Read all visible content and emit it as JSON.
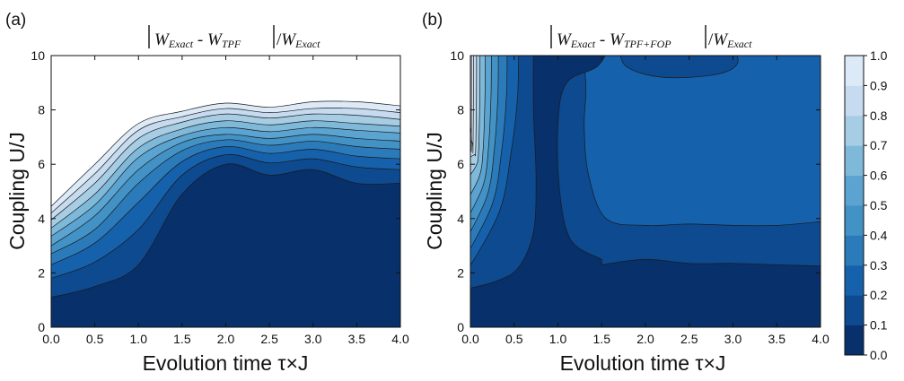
{
  "chart_data": [
    {
      "type": "heatmap",
      "panel_label": "(a)",
      "title_parts": {
        "w_exact": "W",
        "sub_exact": "Exact",
        "minus": " - ",
        "w_approx": "W",
        "sub_approx": "TPF",
        "slash": " /",
        "w_den": "W",
        "sub_den": "Exact"
      },
      "xlabel": "Evolution time τ×J",
      "ylabel": "Coupling U/J",
      "xlim": [
        0,
        4
      ],
      "ylim": [
        0,
        10
      ],
      "xticks": [
        "0.0",
        "0.5",
        "1.0",
        "1.5",
        "2.0",
        "2.5",
        "3.0",
        "3.5",
        "4.0"
      ],
      "yticks": [
        "0",
        "2",
        "4",
        "6",
        "8",
        "10"
      ],
      "contour_levels": [
        0.0,
        0.1,
        0.2,
        0.3,
        0.4,
        0.5,
        0.6,
        0.7,
        0.8,
        0.9,
        1.0
      ],
      "contour_x": [
        0,
        0.5,
        1.0,
        1.5,
        2.0,
        2.5,
        3.0,
        3.5,
        4.0
      ],
      "contours": [
        {
          "level": 0.1,
          "y": [
            1.1,
            1.5,
            2.3,
            4.9,
            6.0,
            5.6,
            5.8,
            5.3,
            5.3
          ]
        },
        {
          "level": 0.2,
          "y": [
            1.8,
            2.4,
            3.6,
            5.6,
            6.35,
            6.05,
            6.2,
            5.9,
            5.8
          ]
        },
        {
          "level": 0.3,
          "y": [
            2.3,
            3.1,
            4.6,
            6.1,
            6.65,
            6.4,
            6.55,
            6.3,
            6.2
          ]
        },
        {
          "level": 0.4,
          "y": [
            2.7,
            3.6,
            5.3,
            6.5,
            6.9,
            6.7,
            6.85,
            6.65,
            6.55
          ]
        },
        {
          "level": 0.5,
          "y": [
            3.0,
            4.1,
            5.8,
            6.8,
            7.1,
            6.95,
            7.1,
            6.95,
            6.85
          ]
        },
        {
          "level": 0.6,
          "y": [
            3.35,
            4.5,
            6.25,
            7.05,
            7.35,
            7.2,
            7.35,
            7.25,
            7.15
          ]
        },
        {
          "level": 0.7,
          "y": [
            3.65,
            4.9,
            6.6,
            7.3,
            7.6,
            7.45,
            7.6,
            7.5,
            7.4
          ]
        },
        {
          "level": 0.8,
          "y": [
            3.95,
            5.3,
            6.95,
            7.55,
            7.85,
            7.7,
            7.85,
            7.8,
            7.65
          ]
        },
        {
          "level": 0.9,
          "y": [
            4.2,
            5.65,
            7.25,
            7.75,
            8.05,
            7.9,
            8.05,
            8.05,
            7.9
          ]
        },
        {
          "level": 1.0,
          "y": [
            4.45,
            6.0,
            7.5,
            7.95,
            8.25,
            8.1,
            8.3,
            8.3,
            8.15
          ]
        }
      ]
    },
    {
      "type": "heatmap",
      "panel_label": "(b)",
      "title_parts": {
        "w_exact": "W",
        "sub_exact": "Exact",
        "minus": " - ",
        "w_approx": "W",
        "sub_approx": "TPF+FOP",
        "slash": " /",
        "w_den": "W",
        "sub_den": "Exact"
      },
      "xlabel": "Evolution time τ×J",
      "ylabel": "Coupling U/J",
      "xlim": [
        0,
        4
      ],
      "ylim": [
        0,
        10
      ],
      "xticks": [
        "0.0",
        "0.5",
        "1.0",
        "1.5",
        "2.0",
        "2.5",
        "3.0",
        "3.5",
        "4.0"
      ],
      "yticks": [
        "0",
        "2",
        "4",
        "6",
        "8",
        "10"
      ],
      "contour_levels": [
        0.0,
        0.1,
        0.2,
        0.3,
        0.4,
        0.5,
        0.6,
        0.7,
        0.8,
        0.9,
        1.0
      ],
      "regions_description_free": true,
      "bottom_band_top_0_1": {
        "x": [
          0,
          0.5,
          1.0,
          1.5,
          2.0,
          2.5,
          3.0,
          3.5,
          4.0
        ],
        "y": [
          1.4,
          1.7,
          1.8,
          2.3,
          2.5,
          2.35,
          2.35,
          2.3,
          2.25
        ]
      },
      "mid_band_top_0_2": {
        "x": [
          1.3,
          1.5,
          2.0,
          2.5,
          3.0,
          3.5,
          4.0
        ],
        "y": [
          2.9,
          3.2,
          3.7,
          3.8,
          3.75,
          3.75,
          3.9
        ]
      },
      "colorbar_ticks": [
        "0.0",
        "0.1",
        "0.2",
        "0.3",
        "0.4",
        "0.5",
        "0.6",
        "0.7",
        "0.8",
        "0.9",
        "1.0"
      ]
    }
  ],
  "colors": [
    "#08306b",
    "#0d4a8f",
    "#1661ab",
    "#2b7bba",
    "#4292c6",
    "#5ba3d0",
    "#7fb9da",
    "#a6cde4",
    "#c6dbef",
    "#dce9f6",
    "#f1f6fc"
  ]
}
